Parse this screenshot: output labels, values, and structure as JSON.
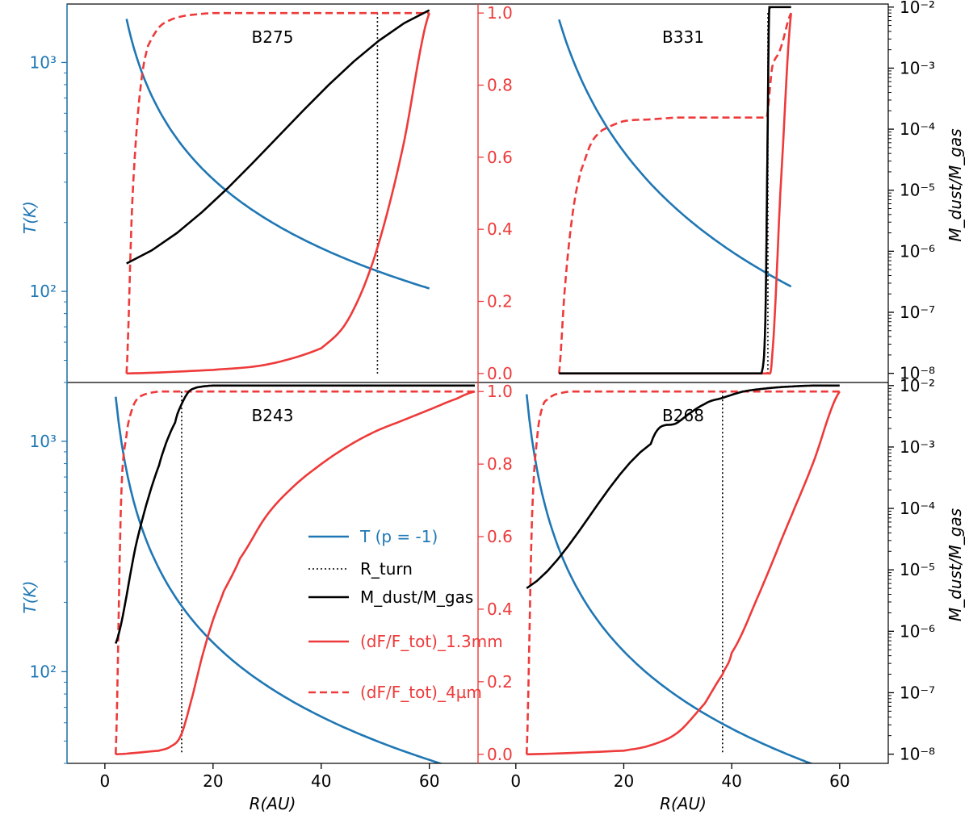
{
  "colors": {
    "blue": "#1f77b4",
    "red": "#ee3a3a",
    "black": "#000000"
  },
  "axes": {
    "left_label": "T(K)",
    "right_label": "M_dust/M_gas",
    "x_label": "R(AU)",
    "left_ticks": [
      {
        "value": 100,
        "label": "10²"
      },
      {
        "value": 1000,
        "label": "10³"
      }
    ],
    "middle_ticks": [
      {
        "value": 0.0,
        "label": "0.0"
      },
      {
        "value": 0.2,
        "label": "0.2"
      },
      {
        "value": 0.4,
        "label": "0.4"
      },
      {
        "value": 0.6,
        "label": "0.6"
      },
      {
        "value": 0.8,
        "label": "0.8"
      },
      {
        "value": 1.0,
        "label": "1.0"
      }
    ],
    "right_ticks": [
      {
        "value": -8,
        "label": "10⁻⁸"
      },
      {
        "value": -7,
        "label": "10⁻⁷"
      },
      {
        "value": -6,
        "label": "10⁻⁶"
      },
      {
        "value": -5,
        "label": "10⁻⁵"
      },
      {
        "value": -4,
        "label": "10⁻⁴"
      },
      {
        "value": -3,
        "label": "10⁻³"
      },
      {
        "value": -2,
        "label": "10⁻²"
      }
    ],
    "x_ticks": [
      {
        "value": 0,
        "label": "0"
      },
      {
        "value": 20,
        "label": "20"
      },
      {
        "value": 40,
        "label": "40"
      },
      {
        "value": 60,
        "label": "60"
      }
    ]
  },
  "legend": {
    "entries": [
      {
        "label": "T (p = -1)",
        "color": "#1f77b4",
        "style": "solid"
      },
      {
        "label": "R_turn",
        "color": "#000000",
        "style": "dotted"
      },
      {
        "label": "M_dust/M_gas",
        "color": "#000000",
        "style": "solid"
      },
      {
        "label": "(dF/F_tot)_1.3mm",
        "color": "#ee3a3a",
        "style": "solid"
      },
      {
        "label": "(dF/F_tot)_4µm",
        "color": "#ee3a3a",
        "style": "dashed"
      }
    ]
  },
  "chart_data": [
    {
      "type": "line",
      "panel": "B275",
      "xlim": [
        -7,
        69
      ],
      "T_range": [
        40,
        1800
      ],
      "frac_range": [
        -0.025,
        1.025
      ],
      "logm_range": [
        -8.15,
        -1.95
      ],
      "r_turn": 50.4,
      "temperature": {
        "x": [
          4,
          60
        ],
        "y": [
          1550,
          103
        ]
      },
      "mass_ratio": {
        "x": [
          4,
          60
        ],
        "log10_y": [
          -6.2,
          -2.05
        ]
      },
      "flux_1_3mm": {
        "x": [
          4,
          20,
          30,
          40,
          45,
          50,
          55,
          60
        ],
        "y": [
          0.0,
          0.01,
          0.025,
          0.07,
          0.15,
          0.33,
          0.62,
          1.0
        ]
      },
      "flux_4um": {
        "x": [
          4,
          5,
          6,
          7,
          8,
          10,
          12,
          14,
          16,
          20,
          30,
          60
        ],
        "y": [
          0.0,
          0.45,
          0.7,
          0.84,
          0.91,
          0.96,
          0.98,
          0.99,
          0.995,
          1.0,
          1.0,
          1.0
        ]
      }
    },
    {
      "type": "line",
      "panel": "B331",
      "xlim": [
        -7,
        69
      ],
      "T_range": [
        40,
        1800
      ],
      "frac_range": [
        -0.025,
        1.025
      ],
      "logm_range": [
        -8.15,
        -1.95
      ],
      "r_turn": 46.7,
      "temperature": {
        "x": [
          8,
          51
        ],
        "y": [
          1540,
          105
        ]
      },
      "mass_ratio": {
        "x": [
          8,
          45.5,
          46.0,
          46.3,
          46.6,
          46.9,
          47.2,
          51
        ],
        "log10_y": [
          -8.0,
          -8.0,
          -7.7,
          -6.8,
          -4.5,
          -2.2,
          -2.0,
          -2.0
        ]
      },
      "flux_1_3mm": {
        "x": [
          8,
          46.5,
          47.5,
          49,
          51
        ],
        "y": [
          0.0,
          0.0,
          0.05,
          0.5,
          1.0
        ]
      },
      "flux_4um": {
        "x": [
          8,
          9,
          10,
          11,
          12,
          14,
          16,
          20,
          25,
          30,
          46.5,
          47.5,
          49,
          51
        ],
        "y": [
          0.0,
          0.22,
          0.38,
          0.49,
          0.56,
          0.64,
          0.675,
          0.7,
          0.705,
          0.71,
          0.71,
          0.85,
          0.9,
          1.0
        ]
      }
    },
    {
      "type": "line",
      "panel": "B243",
      "xlim": [
        -7,
        69
      ],
      "T_range": [
        40,
        1800
      ],
      "frac_range": [
        -0.025,
        1.025
      ],
      "logm_range": [
        -8.15,
        -1.95
      ],
      "r_turn": 14.2,
      "temperature": {
        "x": [
          2,
          68.4
        ],
        "y": [
          1560,
          36
        ]
      },
      "mass_ratio": {
        "x": [
          2,
          6,
          10,
          13,
          14.2,
          15.5,
          17,
          20,
          68.4
        ],
        "log10_y": [
          -6.2,
          -4.5,
          -3.3,
          -2.6,
          -2.3,
          -2.1,
          -2.03,
          -2.0,
          -2.0
        ]
      },
      "flux_1_3mm": {
        "x": [
          2,
          10,
          12,
          14,
          16,
          18,
          20,
          22,
          25,
          30,
          35,
          40,
          45,
          50,
          55,
          60,
          65,
          68.4
        ],
        "y": [
          0.0,
          0.01,
          0.02,
          0.05,
          0.15,
          0.27,
          0.37,
          0.45,
          0.54,
          0.66,
          0.74,
          0.8,
          0.85,
          0.89,
          0.92,
          0.95,
          0.98,
          1.0
        ]
      },
      "flux_4um": {
        "x": [
          2,
          3,
          4,
          5,
          6,
          7,
          8,
          9,
          10,
          68.4
        ],
        "y": [
          0.0,
          0.7,
          0.88,
          0.95,
          0.98,
          0.99,
          0.995,
          0.998,
          1.0,
          1.0
        ]
      }
    },
    {
      "type": "line",
      "panel": "B268",
      "xlim": [
        -7,
        69
      ],
      "T_range": [
        40,
        1800
      ],
      "frac_range": [
        -0.025,
        1.025
      ],
      "logm_range": [
        -8.15,
        -1.95
      ],
      "r_turn": 38.3,
      "temperature": {
        "x": [
          2,
          60
        ],
        "y": [
          1600,
          36
        ]
      },
      "mass_ratio": {
        "x": [
          2,
          25,
          30,
          35,
          38.3,
          42,
          46,
          50,
          55,
          60
        ],
        "log10_y": [
          -5.3,
          -2.95,
          -2.6,
          -2.3,
          -2.2,
          -2.1,
          -2.05,
          -2.02,
          -2.0,
          -2.0
        ]
      },
      "flux_1_3mm": {
        "x": [
          2,
          20,
          25,
          30,
          35,
          38.3,
          40,
          45,
          50,
          55,
          60
        ],
        "y": [
          0.0,
          0.01,
          0.025,
          0.06,
          0.14,
          0.22,
          0.28,
          0.44,
          0.62,
          0.8,
          1.0
        ]
      },
      "flux_4um": {
        "x": [
          2,
          3,
          4,
          5,
          6,
          7,
          8,
          10,
          60
        ],
        "y": [
          0.0,
          0.65,
          0.88,
          0.96,
          0.98,
          0.99,
          0.995,
          1.0,
          1.0
        ]
      }
    }
  ]
}
